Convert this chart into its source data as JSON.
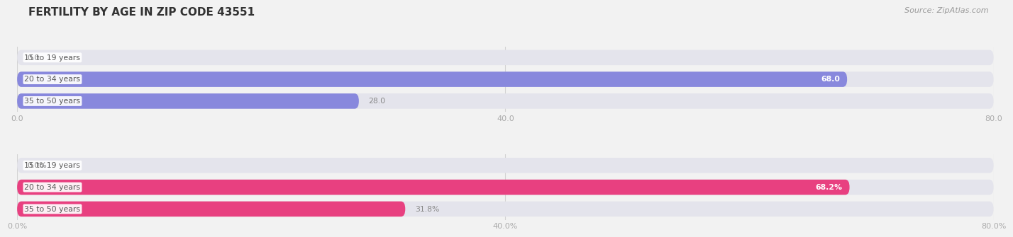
{
  "title": "FERTILITY BY AGE IN ZIP CODE 43551",
  "source": "Source: ZipAtlas.com",
  "top_chart": {
    "categories": [
      "15 to 19 years",
      "20 to 34 years",
      "35 to 50 years"
    ],
    "values": [
      0.0,
      68.0,
      28.0
    ],
    "bar_color": "#8888dd",
    "bar_color_small": "#bbbbee",
    "xlim": [
      0,
      80
    ],
    "xticks": [
      0.0,
      40.0,
      80.0
    ],
    "is_percent": false
  },
  "bottom_chart": {
    "categories": [
      "15 to 19 years",
      "20 to 34 years",
      "35 to 50 years"
    ],
    "values": [
      0.0,
      68.2,
      31.8
    ],
    "bar_color": "#e84080",
    "bar_color_small": "#f090b0",
    "xlim": [
      0,
      80
    ],
    "xticks": [
      0.0,
      40.0,
      80.0
    ],
    "is_percent": true
  },
  "fig_bg_color": "#f2f2f2",
  "bar_bg_color": "#e4e4ec",
  "label_bg_color": "#ffffff",
  "label_text_color": "#555555",
  "value_color_inside": "#ffffff",
  "value_color_outside": "#888888",
  "grid_color": "#cccccc",
  "tick_color": "#aaaaaa",
  "fig_width": 14.06,
  "fig_height": 3.31,
  "title_fontsize": 11,
  "title_color": "#333333",
  "source_color": "#999999",
  "source_fontsize": 8
}
